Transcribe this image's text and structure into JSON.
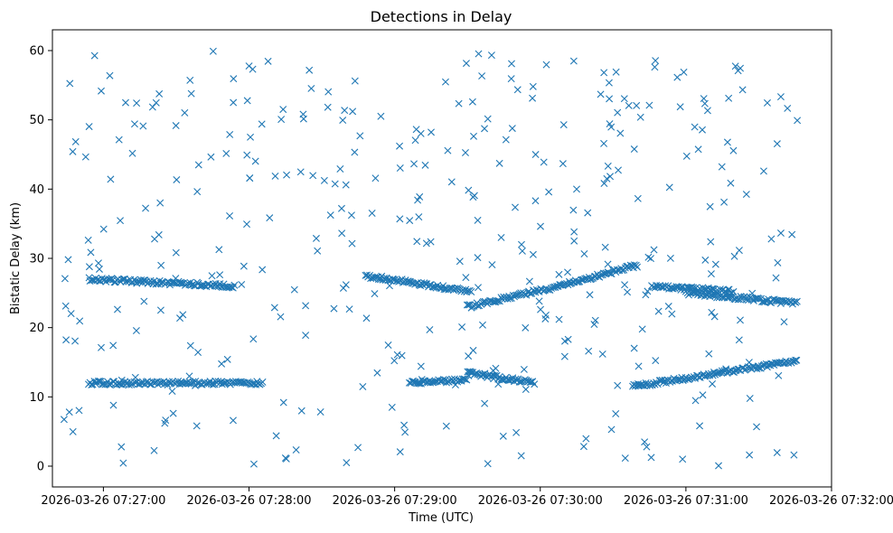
{
  "chart_data": {
    "type": "scatter",
    "title": "Detections in Delay",
    "xlabel": "Time (UTC)",
    "ylabel": "Bistatic Delay (km)",
    "marker": "x",
    "color": "#1f77b4",
    "grid": false,
    "x_unit": "seconds since 2026-03-26 07:27:00",
    "xlim": [
      -21,
      300
    ],
    "ylim": [
      -3,
      63
    ],
    "xticks": [
      {
        "value": 0,
        "label": "2026-03-26 07:27:00"
      },
      {
        "value": 60,
        "label": "2026-03-26 07:28:00"
      },
      {
        "value": 120,
        "label": "2026-03-26 07:29:00"
      },
      {
        "value": 180,
        "label": "2026-03-26 07:30:00"
      },
      {
        "value": 240,
        "label": "2026-03-26 07:31:00"
      },
      {
        "value": 300,
        "label": "2026-03-26 07:32:00"
      }
    ],
    "yticks": [
      {
        "value": 0,
        "label": "0"
      },
      {
        "value": 10,
        "label": "10"
      },
      {
        "value": 20,
        "label": "20"
      },
      {
        "value": 30,
        "label": "30"
      },
      {
        "value": 40,
        "label": "40"
      },
      {
        "value": 50,
        "label": "50"
      },
      {
        "value": 60,
        "label": "60"
      }
    ],
    "data_window": [
      -17,
      286
    ],
    "point_count_approx": 1200,
    "tracks": [
      {
        "name": "track-a-lower",
        "t": [
          -6,
          66
        ],
        "delay": [
          12.0,
          12.0
        ]
      },
      {
        "name": "track-b-upper",
        "t": [
          -6,
          54
        ],
        "delay": [
          27.0,
          26.0
        ]
      },
      {
        "name": "track-c-upper",
        "t": [
          108,
          152
        ],
        "delay": [
          27.5,
          25.2
        ]
      },
      {
        "name": "track-d-lower",
        "t": [
          126,
          150
        ],
        "delay": [
          12.0,
          12.5
        ]
      },
      {
        "name": "track-e-lower",
        "t": [
          150,
          178
        ],
        "delay": [
          13.5,
          12.0
        ]
      },
      {
        "name": "track-f-upper",
        "t": [
          150,
          188
        ],
        "delay": [
          23.0,
          26.0
        ]
      },
      {
        "name": "track-g-upper",
        "t": [
          188,
          220
        ],
        "delay": [
          26.0,
          29.0
        ]
      },
      {
        "name": "track-h-lower",
        "t": [
          218,
          286
        ],
        "delay": [
          11.5,
          15.2
        ]
      },
      {
        "name": "track-i-upper",
        "t": [
          226,
          260
        ],
        "delay": [
          26.0,
          25.2
        ]
      },
      {
        "name": "track-j-upper",
        "t": [
          240,
          286
        ],
        "delay": [
          25.0,
          23.5
        ]
      }
    ],
    "note": "Scattered clutter detections fill the 0-60 km band between t=-17 s and t=286 s; the tracks above are the dense linear features."
  }
}
